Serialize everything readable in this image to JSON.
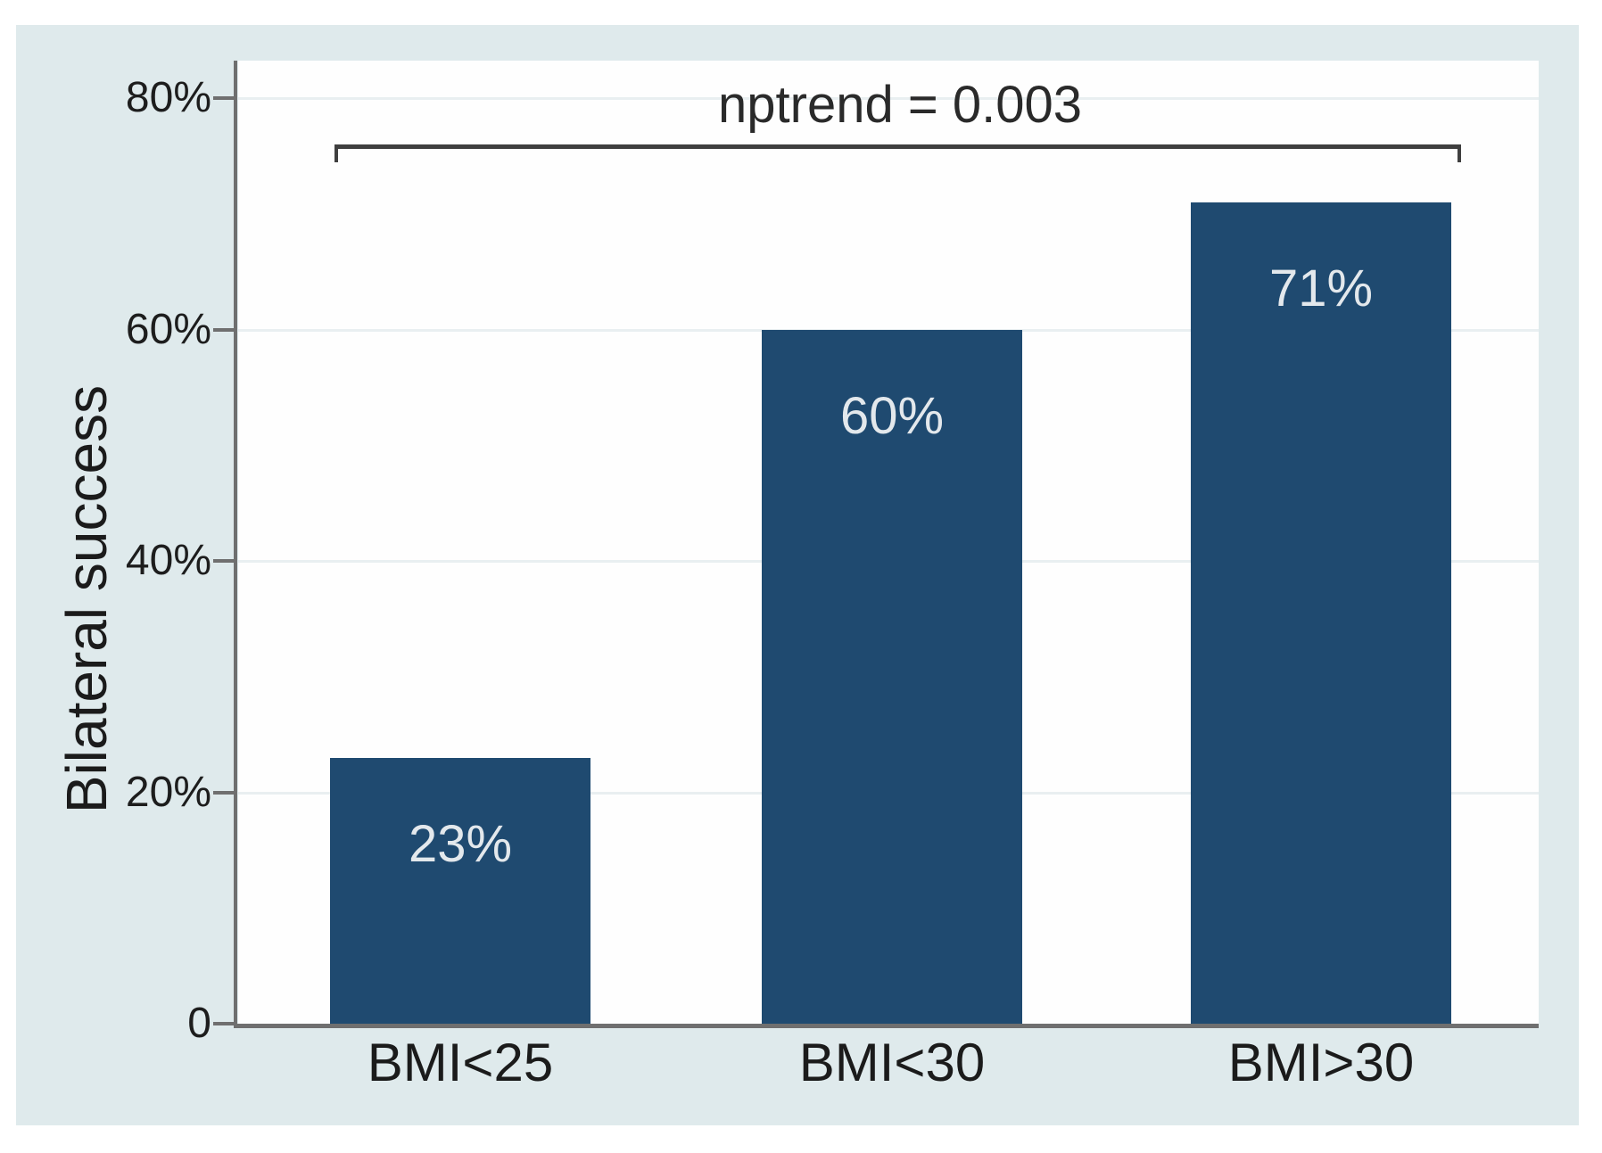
{
  "chart_data": {
    "type": "bar",
    "title": "",
    "xlabel": "",
    "ylabel": "Bilateral success",
    "categories": [
      "BMI<25",
      "BMI<30",
      "BMI>30"
    ],
    "values": [
      23,
      60,
      71
    ],
    "bar_labels": [
      "23%",
      "60%",
      "71%"
    ],
    "yticks": [
      0,
      20,
      40,
      60,
      80
    ],
    "ytick_labels": [
      "0",
      "20%",
      "40%",
      "60%",
      "80%"
    ],
    "ylim": [
      0,
      80
    ],
    "grid": true,
    "legend_position": "none",
    "annotation": {
      "text": "nptrend = 0.003",
      "from_category": "BMI<25",
      "to_category": "BMI>30"
    },
    "colors": {
      "bar": "#1f4a70",
      "bar_label_text": "#e3e8ec",
      "canvas_background": "#dfeaec",
      "plot_background": "#fefefe",
      "axis": "#6f6f6f",
      "gridline": "#e9eff1",
      "bracket": "#3f3f3f",
      "tick_text": "#1d1d1d"
    }
  }
}
